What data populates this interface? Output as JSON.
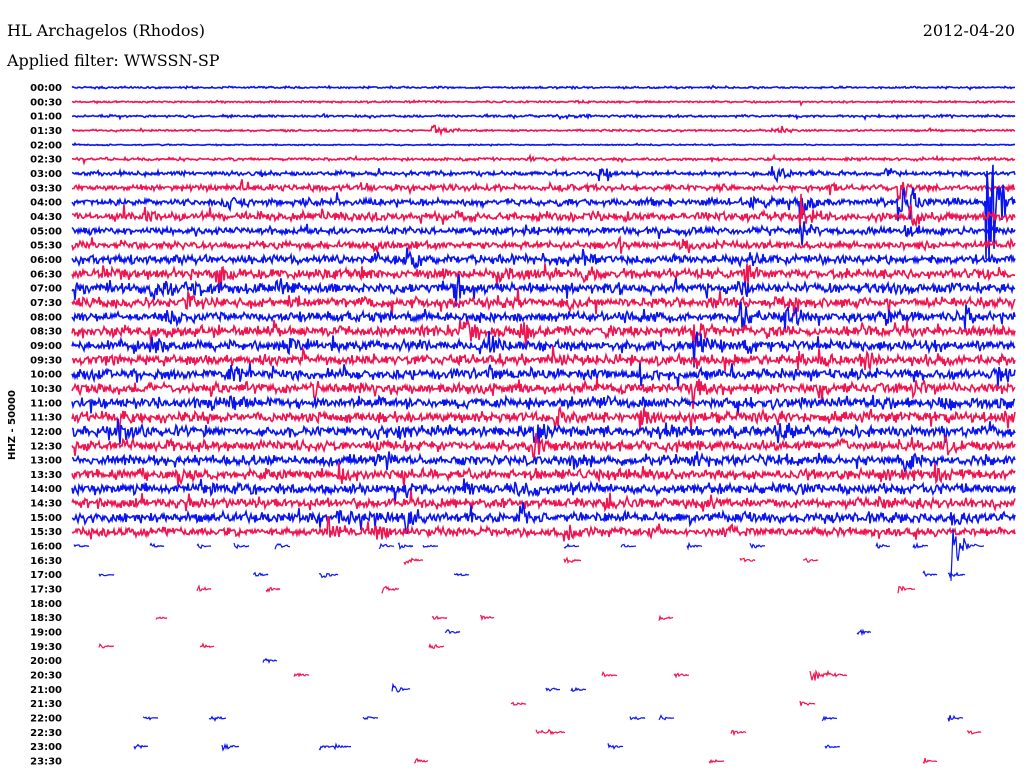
{
  "header": {
    "station": "HL Archagelos (Rhodos)",
    "date": "2012-04-20",
    "filter": "Applied filter: WWSSN-SP"
  },
  "chart_data": {
    "type": "line",
    "title": "HL Archagelos (Rhodos)",
    "subtitle": "Applied filter: WWSSN-SP",
    "ylabel": "HHZ - 50000",
    "xlabel": "",
    "x_range_minutes": [
      0,
      30
    ],
    "colors": {
      "even": "#0a14f0",
      "odd": "#f01450"
    },
    "rows": [
      {
        "label": "00:00",
        "noise": 0.08,
        "events": []
      },
      {
        "label": "00:30",
        "noise": 0.08,
        "events": []
      },
      {
        "label": "01:00",
        "noise": 0.1,
        "events": []
      },
      {
        "label": "01:30",
        "noise": 0.08,
        "events": [
          [
            11.5,
            0.6
          ],
          [
            22.5,
            0.4
          ]
        ]
      },
      {
        "label": "02:00",
        "noise": 0.05,
        "events": []
      },
      {
        "label": "02:30",
        "noise": 0.12,
        "events": [
          [
            14.5,
            0.2
          ]
        ]
      },
      {
        "label": "03:00",
        "noise": 0.18,
        "events": [
          [
            16.8,
            0.6
          ],
          [
            22.3,
            1.2
          ],
          [
            25.9,
            0.5
          ]
        ]
      },
      {
        "label": "03:30",
        "noise": 0.25,
        "events": [
          [
            5.4,
            0.5
          ],
          [
            26.3,
            1.0
          ],
          [
            24.1,
            0.4
          ]
        ]
      },
      {
        "label": "04:00",
        "noise": 0.3,
        "events": [
          [
            5.0,
            0.8
          ],
          [
            21.6,
            0.8
          ],
          [
            23.2,
            1.5
          ],
          [
            26.3,
            1.5
          ],
          [
            26.7,
            1.2
          ],
          [
            29.1,
            11
          ]
        ]
      },
      {
        "label": "04:30",
        "noise": 0.35,
        "events": [
          [
            2.3,
            0.6
          ],
          [
            23.2,
            1.5
          ],
          [
            26.7,
            1.2
          ]
        ]
      },
      {
        "label": "05:00",
        "noise": 0.3,
        "events": [
          [
            14.1,
            0.6
          ],
          [
            23.2,
            1.2
          ],
          [
            26.5,
            0.8
          ]
        ]
      },
      {
        "label": "05:30",
        "noise": 0.3,
        "events": [
          [
            9.6,
            0.7
          ],
          [
            17.4,
            0.7
          ],
          [
            19.3,
            0.6
          ]
        ]
      },
      {
        "label": "06:00",
        "noise": 0.35,
        "events": [
          [
            10.7,
            0.8
          ],
          [
            16.3,
            0.8
          ],
          [
            21.6,
            0.8
          ]
        ]
      },
      {
        "label": "06:30",
        "noise": 0.4,
        "events": [
          [
            4.7,
            1.2
          ],
          [
            13.5,
            0.8
          ],
          [
            21.4,
            1.2
          ],
          [
            16.3,
            0.6
          ]
        ]
      },
      {
        "label": "07:00",
        "noise": 0.4,
        "events": [
          [
            2.5,
            1.2
          ],
          [
            3.9,
            1.0
          ],
          [
            12.2,
            1.5
          ],
          [
            21.2,
            1.0
          ],
          [
            6.5,
            0.8
          ]
        ]
      },
      {
        "label": "07:30",
        "noise": 0.4,
        "events": [
          [
            3.6,
            0.8
          ],
          [
            15.8,
            0.8
          ],
          [
            6.9,
            0.6
          ]
        ]
      },
      {
        "label": "08:00",
        "noise": 0.4,
        "events": [
          [
            3.0,
            1.0
          ],
          [
            21.3,
            1.4
          ],
          [
            22.7,
            1.4
          ],
          [
            28.4,
            0.8
          ],
          [
            25.9,
            0.6
          ]
        ]
      },
      {
        "label": "08:30",
        "noise": 0.42,
        "events": [
          [
            12.5,
            1.2
          ],
          [
            14.3,
            0.9
          ],
          [
            19.8,
            1.2
          ],
          [
            22.1,
            0.8
          ]
        ]
      },
      {
        "label": "09:00",
        "noise": 0.42,
        "events": [
          [
            2.5,
            1.0
          ],
          [
            6.9,
            0.8
          ],
          [
            13.3,
            0.9
          ],
          [
            19.8,
            2.0
          ],
          [
            21.4,
            0.6
          ]
        ]
      },
      {
        "label": "09:30",
        "noise": 0.42,
        "events": [
          [
            4.1,
            0.6
          ],
          [
            23.8,
            0.7
          ],
          [
            25.1,
            0.9
          ],
          [
            27.6,
            0.6
          ]
        ]
      },
      {
        "label": "10:00",
        "noise": 0.42,
        "events": [
          [
            5.0,
            1.2
          ],
          [
            13.3,
            0.6
          ],
          [
            18.1,
            0.6
          ],
          [
            29.5,
            0.6
          ]
        ]
      },
      {
        "label": "10:30",
        "noise": 0.42,
        "events": [
          [
            19.8,
            2.0
          ],
          [
            7.6,
            0.7
          ],
          [
            14.1,
            0.6
          ],
          [
            26.8,
            0.8
          ]
        ]
      },
      {
        "label": "11:00",
        "noise": 0.42,
        "events": [
          [
            5.0,
            0.7
          ],
          [
            16.8,
            0.6
          ],
          [
            27.8,
            0.6
          ],
          [
            29.5,
            0.5
          ]
        ]
      },
      {
        "label": "11:30",
        "noise": 0.42,
        "events": [
          [
            1.5,
            1.0
          ],
          [
            15.4,
            1.2
          ],
          [
            18.1,
            0.8
          ]
        ]
      },
      {
        "label": "12:00",
        "noise": 0.42,
        "events": [
          [
            1.5,
            1.0
          ],
          [
            10.4,
            0.6
          ],
          [
            14.7,
            1.3
          ],
          [
            18.7,
            0.7
          ],
          [
            22.4,
            0.6
          ]
        ]
      },
      {
        "label": "12:30",
        "noise": 0.42,
        "events": [
          [
            14.7,
            1.2
          ],
          [
            24.4,
            0.7
          ],
          [
            27.8,
            0.8
          ]
        ]
      },
      {
        "label": "13:00",
        "noise": 0.42,
        "events": [
          [
            16.0,
            0.6
          ],
          [
            19.7,
            0.7
          ],
          [
            26.5,
            0.8
          ]
        ]
      },
      {
        "label": "13:30",
        "noise": 0.42,
        "events": [
          [
            3.4,
            0.7
          ],
          [
            8.5,
            0.6
          ],
          [
            25.7,
            0.7
          ],
          [
            27.5,
            0.7
          ]
        ]
      },
      {
        "label": "14:00",
        "noise": 0.42,
        "events": [
          [
            4.1,
            0.6
          ],
          [
            12.5,
            0.6
          ],
          [
            14.1,
            0.6
          ]
        ]
      },
      {
        "label": "14:30",
        "noise": 0.4,
        "events": [
          [
            3.6,
            0.6
          ],
          [
            17.0,
            0.6
          ],
          [
            25.7,
            0.6
          ]
        ]
      },
      {
        "label": "15:00",
        "noise": 0.4,
        "events": [
          [
            8.5,
            0.8
          ],
          [
            10.6,
            1.2
          ],
          [
            14.3,
            1.2
          ],
          [
            21.4,
            0.6
          ],
          [
            28.0,
            0.8
          ]
        ]
      },
      {
        "label": "15:30",
        "noise": 0.35,
        "events": [
          [
            8.1,
            1.6
          ],
          [
            15.7,
            0.8
          ],
          [
            20.7,
            0.6
          ],
          [
            9.6,
            0.8
          ]
        ]
      },
      {
        "label": "16:00",
        "noise": 0,
        "events": [
          [
            28.0,
            3.2
          ],
          [
            0.1,
            0.3
          ],
          [
            2.5,
            0.3
          ],
          [
            4.0,
            0.3
          ],
          [
            5.2,
            0.3
          ],
          [
            6.5,
            0.3
          ],
          [
            9.8,
            0.3
          ],
          [
            10.4,
            0.3
          ],
          [
            11.2,
            0.3
          ],
          [
            15.7,
            0.3
          ],
          [
            17.5,
            0.3
          ],
          [
            19.6,
            0.3
          ],
          [
            21.6,
            0.3
          ],
          [
            25.6,
            0.3
          ],
          [
            26.8,
            0.3
          ]
        ]
      },
      {
        "label": "16:30",
        "noise": 0,
        "events": [
          [
            10.6,
            0.5
          ],
          [
            15.7,
            0.4
          ],
          [
            21.3,
            0.3
          ],
          [
            23.3,
            0.3
          ]
        ]
      },
      {
        "label": "17:00",
        "noise": 0,
        "events": [
          [
            0.9,
            0.3
          ],
          [
            5.8,
            0.3
          ],
          [
            7.9,
            0.5
          ],
          [
            12.2,
            0.3
          ],
          [
            27.1,
            0.3
          ],
          [
            27.9,
            0.4
          ]
        ]
      },
      {
        "label": "17:30",
        "noise": 0,
        "events": [
          [
            4.0,
            0.3
          ],
          [
            6.2,
            0.3
          ],
          [
            9.9,
            0.4
          ],
          [
            26.3,
            0.4
          ]
        ]
      },
      {
        "label": "18:00",
        "noise": 0,
        "events": []
      },
      {
        "label": "18:30",
        "noise": 0,
        "events": [
          [
            2.7,
            0.2
          ],
          [
            11.5,
            0.3
          ],
          [
            13.0,
            0.3
          ],
          [
            18.7,
            0.3
          ]
        ]
      },
      {
        "label": "19:00",
        "noise": 0,
        "events": [
          [
            11.9,
            0.3
          ],
          [
            25.0,
            0.3
          ]
        ]
      },
      {
        "label": "19:30",
        "noise": 0,
        "events": [
          [
            0.9,
            0.3
          ],
          [
            4.1,
            0.3
          ],
          [
            11.4,
            0.3
          ]
        ]
      },
      {
        "label": "20:00",
        "noise": 0,
        "events": [
          [
            6.1,
            0.3
          ]
        ]
      },
      {
        "label": "20:30",
        "noise": 0,
        "events": [
          [
            7.1,
            0.3
          ],
          [
            16.9,
            0.3
          ],
          [
            19.2,
            0.3
          ],
          [
            23.5,
            1.0
          ],
          [
            24.1,
            0.4
          ]
        ]
      },
      {
        "label": "21:00",
        "noise": 0,
        "events": [
          [
            10.2,
            0.5
          ],
          [
            15.1,
            0.3
          ],
          [
            15.9,
            0.3
          ]
        ]
      },
      {
        "label": "21:30",
        "noise": 0,
        "events": [
          [
            14.0,
            0.3
          ],
          [
            23.2,
            0.3
          ]
        ]
      },
      {
        "label": "22:00",
        "noise": 0,
        "events": [
          [
            2.3,
            0.3
          ],
          [
            4.4,
            0.4
          ],
          [
            9.3,
            0.3
          ],
          [
            17.8,
            0.3
          ],
          [
            18.7,
            0.3
          ],
          [
            23.9,
            0.3
          ],
          [
            27.9,
            0.3
          ]
        ]
      },
      {
        "label": "22:30",
        "noise": 0,
        "events": [
          [
            14.8,
            0.3
          ],
          [
            15.2,
            0.3
          ],
          [
            21.0,
            0.3
          ],
          [
            28.5,
            0.3
          ]
        ]
      },
      {
        "label": "23:00",
        "noise": 0,
        "events": [
          [
            2.0,
            0.3
          ],
          [
            4.8,
            0.4
          ],
          [
            7.9,
            0.3
          ],
          [
            8.4,
            0.3
          ],
          [
            17.1,
            0.3
          ],
          [
            24.0,
            0.3
          ]
        ]
      },
      {
        "label": "23:30",
        "noise": 0,
        "events": [
          [
            10.9,
            0.3
          ],
          [
            20.3,
            0.3
          ],
          [
            27.1,
            0.3
          ]
        ]
      }
    ]
  }
}
